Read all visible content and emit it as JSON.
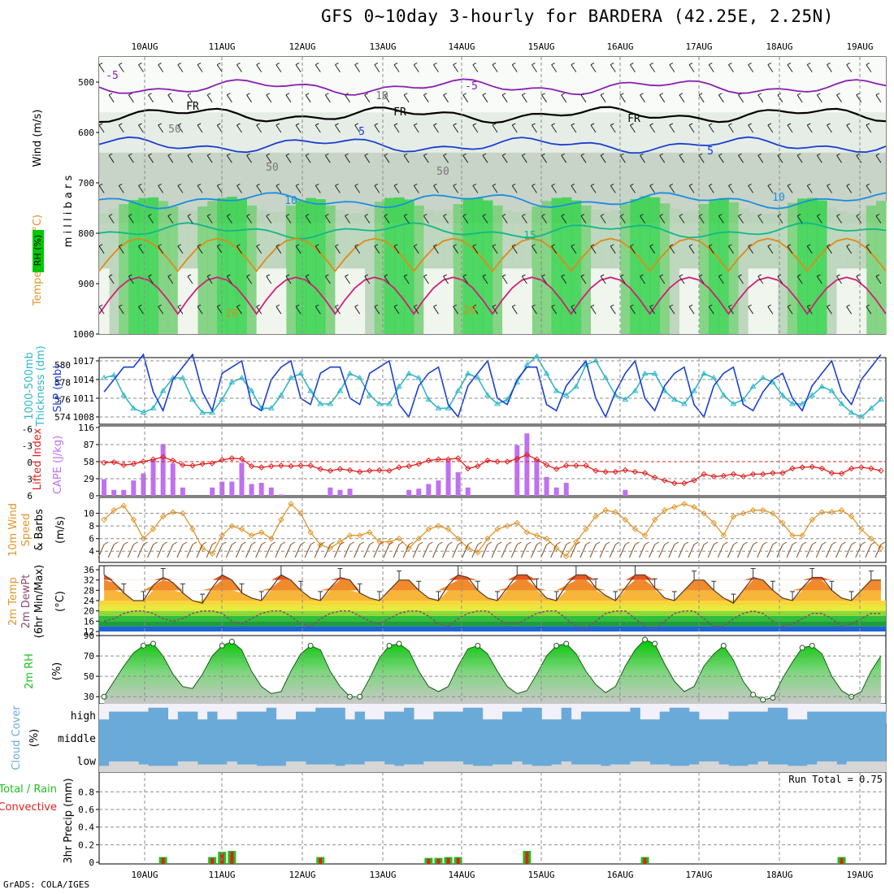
{
  "title": "GFS 0~10day 3-hourly for BARDERA (42.25E, 2.25N)",
  "credit": "GrADS: COLA/IGES",
  "colors": {
    "axis": "#000000",
    "grid": "#9a9a9a"
  },
  "dates": [
    "10AUG",
    "11AUG",
    "12AUG",
    "13AUG",
    "14AUG",
    "15AUG",
    "16AUG",
    "17AUG",
    "18AUG",
    "19AUG"
  ],
  "chart_data": [
    {
      "type": "heatmap",
      "panel": "upper-air",
      "labels": {
        "wind": "Wind (m/s)",
        "temperature": "Temperature (°C)",
        "rh": "RH (%)",
        "pressure": "m i l l i b a r s"
      },
      "y_ticks": [
        "500",
        "600",
        "700",
        "800",
        "900",
        "1000"
      ],
      "y_range_mb": [
        450,
        1000
      ],
      "contour_labels": [
        "-5",
        "-5",
        "FR",
        "FR",
        "FR",
        "5",
        "5",
        "10",
        "10",
        "15",
        "20",
        "20",
        "10",
        "50",
        "50",
        "50"
      ],
      "isotherms": [
        {
          "temp": "-5",
          "color": "#8a1fb0",
          "level_mb": 510
        },
        {
          "temp": "FR",
          "color": "#000000",
          "level_mb": 565
        },
        {
          "temp": "5",
          "color": "#1a3fd0",
          "level_mb": 625
        },
        {
          "temp": "10",
          "color": "#1a8ee0",
          "level_mb": 735
        },
        {
          "temp": "15",
          "color": "#10b888",
          "level_mb": 795
        },
        {
          "temp": "20",
          "color": "#e08a1a",
          "level_mb": 875
        },
        {
          "temp": "25",
          "color": "#d0207a",
          "level_mb": 960
        }
      ]
    },
    {
      "type": "line",
      "panel": "thickness-slp",
      "labels": {
        "thickness": "1000-500mb Thickness (dm)",
        "slp": "SLP (mb)"
      },
      "left_ticks": [
        "574",
        "576",
        "578",
        "580"
      ],
      "right_ticks": [
        "1008",
        "1011",
        "1014",
        "1017"
      ],
      "series": [
        {
          "name": "SLP (mb)",
          "color": "#1a3fd0",
          "values": [
            1012,
            1014,
            1016,
            1016,
            1018,
            1012,
            1009,
            1014,
            1016,
            1018,
            1012,
            1009,
            1015,
            1016,
            1017,
            1010,
            1009,
            1014,
            1016,
            1017,
            1011,
            1010,
            1015,
            1016,
            1016,
            1011,
            1010,
            1015,
            1016,
            1017,
            1010,
            1008,
            1013,
            1015,
            1016,
            1010,
            1008,
            1013,
            1015,
            1017,
            1011,
            1010,
            1014,
            1016,
            1016,
            1010,
            1009,
            1013,
            1015,
            1017,
            1011,
            1008,
            1012,
            1015,
            1017,
            1011,
            1009,
            1013,
            1015,
            1016,
            1010,
            1008,
            1013,
            1015,
            1016,
            1010,
            1009,
            1012,
            1014,
            1015,
            1011,
            1009,
            1013,
            1015,
            1017,
            1012,
            1010,
            1014,
            1016,
            1018
          ]
        },
        {
          "name": "Thickness (dm)",
          "color": "#30b8c8",
          "values": [
            578.5,
            578.8,
            576.5,
            575,
            574.5,
            575,
            577,
            578.5,
            578.5,
            576,
            574.5,
            574.5,
            576,
            578,
            578.5,
            577,
            575,
            575,
            576.5,
            578.5,
            579,
            577,
            575.5,
            575.5,
            577,
            579,
            578.5,
            576.5,
            575.5,
            575.5,
            577.5,
            579,
            578.5,
            576,
            575,
            575,
            577,
            579,
            578.5,
            576.5,
            575.5,
            576,
            578,
            580,
            581,
            579,
            577,
            576.5,
            577.5,
            580,
            580.5,
            578.5,
            576.5,
            576,
            577,
            579,
            579,
            577,
            576,
            575.5,
            577,
            579,
            578.5,
            576.5,
            575.5,
            576,
            577.5,
            578.5,
            578,
            576.5,
            575.5,
            575.5,
            576.5,
            577.5,
            577,
            575.5,
            574.5,
            574,
            575,
            576
          ]
        }
      ]
    },
    {
      "type": "bar",
      "panel": "cape-li",
      "labels": {
        "li": "Lifted Index",
        "cape": "CAPE (J/kg)"
      },
      "left_ticks": [
        "-6",
        "-3",
        "0",
        "3",
        "6"
      ],
      "right_ticks": [
        "116",
        "87",
        "58",
        "29",
        "0"
      ],
      "cape_values": [
        28,
        10,
        10,
        26,
        38,
        62,
        88,
        55,
        14,
        0,
        0,
        14,
        24,
        24,
        56,
        20,
        22,
        14,
        2,
        0,
        0,
        0,
        0,
        14,
        10,
        12,
        0,
        0,
        0,
        0,
        0,
        10,
        12,
        20,
        26,
        60,
        40,
        14,
        0,
        0,
        0,
        0,
        86,
        106,
        62,
        32,
        14,
        22,
        0,
        0,
        0,
        0,
        0,
        10,
        0,
        0,
        0,
        0,
        0,
        0,
        0,
        0,
        0,
        0,
        0,
        0,
        0,
        0,
        0,
        0,
        0,
        0,
        0,
        0,
        0,
        0,
        0,
        0,
        0,
        0
      ],
      "li_values": [
        0.2,
        0.1,
        0.6,
        0.4,
        0.0,
        -0.4,
        -0.8,
        -0.2,
        0.6,
        0.7,
        0.4,
        0.3,
        -0.3,
        -0.6,
        -0.5,
        0.8,
        1.0,
        0.8,
        0.7,
        0.8,
        0.7,
        0.7,
        1.3,
        1.6,
        1.3,
        1.5,
        1.8,
        1.6,
        1.5,
        1.6,
        1.0,
        0.8,
        0.4,
        -0.2,
        -0.4,
        -0.4,
        -0.6,
        1.2,
        0.8,
        -0.2,
        0.0,
        0.0,
        -0.5,
        -1.2,
        -0.4,
        0.6,
        1.3,
        0.7,
        0.7,
        0.7,
        1.6,
        1.8,
        1.8,
        1.5,
        1.8,
        2.0,
        2.8,
        3.3,
        3.8,
        3.8,
        3.3,
        2.2,
        2.6,
        2.5,
        2.2,
        2.6,
        2.2,
        2.2,
        2.0,
        2.0,
        1.2,
        1.0,
        0.9,
        1.2,
        2.0,
        2.1,
        1.2,
        1.0,
        1.2,
        1.6
      ]
    },
    {
      "type": "line",
      "panel": "wind",
      "labels": {
        "wind": "10m Wind Speed & Barbs",
        "unit": "(m/s)"
      },
      "y_ticks": [
        "4",
        "6",
        "8",
        "10"
      ],
      "series": [
        {
          "name": "10m Wind Speed",
          "color": "#e0962a",
          "values": [
            9,
            10.5,
            11.2,
            9,
            6,
            7.5,
            9.5,
            10.2,
            10,
            7.5,
            4.5,
            3.6,
            6.5,
            8,
            7.5,
            6.5,
            7,
            6,
            9,
            11.5,
            10,
            7,
            5,
            4.5,
            5.5,
            6.5,
            6.5,
            7,
            5.5,
            5.5,
            6,
            4.5,
            6,
            7.5,
            8,
            7.5,
            6,
            4.5,
            3.8,
            6,
            7.5,
            8,
            8.5,
            7,
            6.5,
            6,
            4.5,
            3.2,
            5.5,
            7.5,
            9.5,
            10.5,
            10.2,
            9,
            7.5,
            6.5,
            9,
            10.5,
            11,
            11.5,
            11,
            10,
            8.5,
            6.5,
            9.5,
            10,
            10.5,
            10.5,
            10,
            8.5,
            6.5,
            6.5,
            9,
            10.2,
            10.2,
            10.5,
            9.5,
            7.5,
            6,
            4.5
          ]
        }
      ]
    },
    {
      "type": "area",
      "panel": "temp",
      "labels": {
        "temp": "2m Temp",
        "dewpt": "2m DewPt",
        "minmax": "(6hr Min/Max)",
        "unit": "(°C)"
      },
      "y_ticks": [
        "12",
        "16",
        "20",
        "24",
        "28",
        "32",
        "36"
      ],
      "y_range": [
        12,
        36
      ],
      "series": [
        {
          "name": "2m Temp",
          "values": [
            34,
            31,
            27,
            24,
            24,
            30,
            33,
            31,
            27,
            24,
            23,
            29,
            34,
            32,
            27,
            25,
            24,
            29,
            34,
            32,
            28,
            25,
            24,
            29,
            33,
            32,
            27,
            25,
            24,
            28,
            32,
            32,
            28,
            25,
            24,
            30,
            34,
            33,
            28,
            25,
            24,
            29,
            34,
            34,
            29,
            25,
            24,
            30,
            34,
            34,
            29,
            26,
            24,
            29,
            34,
            34,
            29,
            25,
            24,
            28,
            32,
            32,
            28,
            25,
            23,
            28,
            33,
            32,
            28,
            25,
            24,
            29,
            33,
            33,
            28,
            25,
            24,
            28,
            32,
            32
          ]
        },
        {
          "name": "2m DewPt",
          "values": [
            16,
            17,
            19,
            20,
            20,
            19,
            17,
            16,
            17,
            19,
            20,
            20,
            19,
            16,
            15,
            17,
            19,
            20,
            20,
            18,
            15,
            14,
            17,
            19,
            20,
            20,
            18,
            16,
            15,
            17,
            19,
            20,
            20,
            18,
            15,
            14,
            17,
            19,
            20,
            20,
            17,
            15,
            15,
            17,
            19,
            20,
            20,
            17,
            14,
            13,
            16,
            19,
            20,
            20,
            17,
            14,
            13,
            16,
            19,
            20,
            20,
            17,
            14,
            14,
            17,
            19,
            20,
            19,
            16,
            14,
            15,
            17,
            19,
            19,
            17,
            14,
            15,
            17,
            19,
            19
          ]
        }
      ]
    },
    {
      "type": "area",
      "panel": "rh",
      "labels": {
        "rh": "2m RH",
        "unit": "(%)"
      },
      "y_ticks": [
        "30",
        "50",
        "70",
        "90"
      ],
      "y_range": [
        23,
        90
      ],
      "series": [
        {
          "name": "2m RH",
          "values": [
            30,
            45,
            60,
            73,
            80,
            82,
            70,
            52,
            40,
            38,
            52,
            70,
            80,
            84,
            76,
            55,
            40,
            33,
            35,
            55,
            72,
            80,
            76,
            55,
            40,
            30,
            30,
            48,
            68,
            80,
            82,
            75,
            55,
            40,
            35,
            40,
            60,
            77,
            80,
            72,
            55,
            40,
            33,
            36,
            52,
            70,
            80,
            82,
            72,
            55,
            42,
            34,
            40,
            60,
            76,
            86,
            82,
            62,
            45,
            35,
            40,
            60,
            72,
            80,
            66,
            45,
            32,
            27,
            29,
            48,
            64,
            78,
            80,
            72,
            50,
            36,
            30,
            35,
            55,
            70
          ]
        }
      ]
    },
    {
      "type": "area",
      "panel": "cloud",
      "labels": {
        "cloud": "Cloud Cover",
        "unit": "(%)",
        "high": "high",
        "middle": "middle",
        "low": "low"
      },
      "high_cover": [
        0.2,
        0.6,
        0.6,
        0.6,
        0.6,
        0.8,
        0.8,
        0.2,
        0.6,
        0.6,
        0.2,
        0.6,
        0.2,
        0.2,
        0.6,
        0.6,
        0.6,
        0.8,
        0.2,
        0.2,
        0.6,
        0.6,
        0.8,
        0.8,
        0.8,
        0.2,
        0.6,
        0.2,
        0.2,
        0.6,
        0.6,
        0.8,
        0.2,
        0.2,
        0.6,
        0.6,
        0.6,
        0.8,
        0.8,
        0.2,
        0.2,
        0.6,
        0.6,
        0.8,
        0.8,
        0.2,
        0.2,
        0.8,
        0.2,
        0.6,
        0.6,
        0.6,
        0.6,
        0.6,
        0.8,
        0.2,
        0.2,
        0.6,
        0.8,
        0.8,
        0.6,
        0.2,
        0.2,
        0.2,
        0.6,
        0.6,
        0.6,
        0.6,
        0.8,
        0.8,
        0.2,
        0.2,
        0.6,
        0.6,
        0.6,
        0.6,
        0.6,
        0.6,
        0.6,
        0.6
      ],
      "low_cover": [
        0.2,
        0.5,
        0.5,
        0.5,
        0.3,
        0.2,
        0.2,
        0.2,
        0.5,
        0.5,
        0.3,
        0.3,
        0.3,
        0.5,
        0.3,
        0.3,
        0.2,
        0.2,
        0.2,
        0.5,
        0.5,
        0.3,
        0.3,
        0.3,
        0.2,
        0.3,
        0.3,
        0.5,
        0.5,
        0.3,
        0.2,
        0.3,
        0.3,
        0.5,
        0.5,
        0.5,
        0.5,
        0.3,
        0.2,
        0.2,
        0.3,
        0.3,
        0.5,
        0.3,
        0.2,
        0.2,
        0.3,
        0.5,
        0.3,
        0.3,
        0.3,
        0.2,
        0.3,
        0.3,
        0.5,
        0.5,
        0.3,
        0.3,
        0.2,
        0.2,
        0.3,
        0.5,
        0.5,
        0.3,
        0.2,
        0.2,
        0.3,
        0.5,
        0.3,
        0.3,
        0.2,
        0.2,
        0.3,
        0.5,
        0.5,
        0.3,
        0.5,
        0.5,
        0.5,
        0.5
      ]
    },
    {
      "type": "bar",
      "panel": "precip",
      "labels": {
        "precip": "3hr Precip (mm)",
        "total": "Total / Rain",
        "convective": "Convective",
        "run_total": "Run Total = 0.75"
      },
      "y_ticks": [
        "0",
        "0.2",
        "0.4",
        "0.6",
        "0.8"
      ],
      "y_range": [
        0,
        1.0
      ],
      "series": [
        {
          "name": "Total / Rain",
          "color": "#20c020",
          "values": [
            0,
            0,
            0,
            0,
            0,
            0,
            0.06,
            0,
            0,
            0,
            0,
            0.06,
            0.12,
            0.13,
            0,
            0,
            0,
            0,
            0,
            0,
            0,
            0,
            0.06,
            0,
            0,
            0,
            0,
            0,
            0,
            0,
            0,
            0,
            0,
            0.05,
            0.05,
            0.06,
            0.06,
            0,
            0,
            0,
            0,
            0,
            0,
            0.13,
            0,
            0,
            0,
            0,
            0,
            0,
            0,
            0,
            0,
            0,
            0,
            0.06,
            0,
            0,
            0,
            0,
            0,
            0,
            0,
            0,
            0,
            0,
            0,
            0,
            0,
            0,
            0,
            0,
            0,
            0,
            0,
            0.06,
            0,
            0,
            0,
            0
          ]
        },
        {
          "name": "Convective",
          "color": "#e02020",
          "values": [
            0,
            0,
            0,
            0,
            0,
            0,
            0.05,
            0,
            0,
            0,
            0,
            0.05,
            0.1,
            0.12,
            0,
            0,
            0,
            0,
            0,
            0,
            0,
            0,
            0.05,
            0,
            0,
            0,
            0,
            0,
            0,
            0,
            0,
            0,
            0,
            0.04,
            0.04,
            0.05,
            0.05,
            0,
            0,
            0,
            0,
            0,
            0,
            0.12,
            0,
            0,
            0,
            0,
            0,
            0,
            0,
            0,
            0,
            0,
            0,
            0.05,
            0,
            0,
            0,
            0,
            0,
            0,
            0,
            0,
            0,
            0,
            0,
            0,
            0,
            0,
            0,
            0,
            0,
            0,
            0,
            0.05,
            0,
            0,
            0,
            0
          ]
        }
      ]
    }
  ]
}
